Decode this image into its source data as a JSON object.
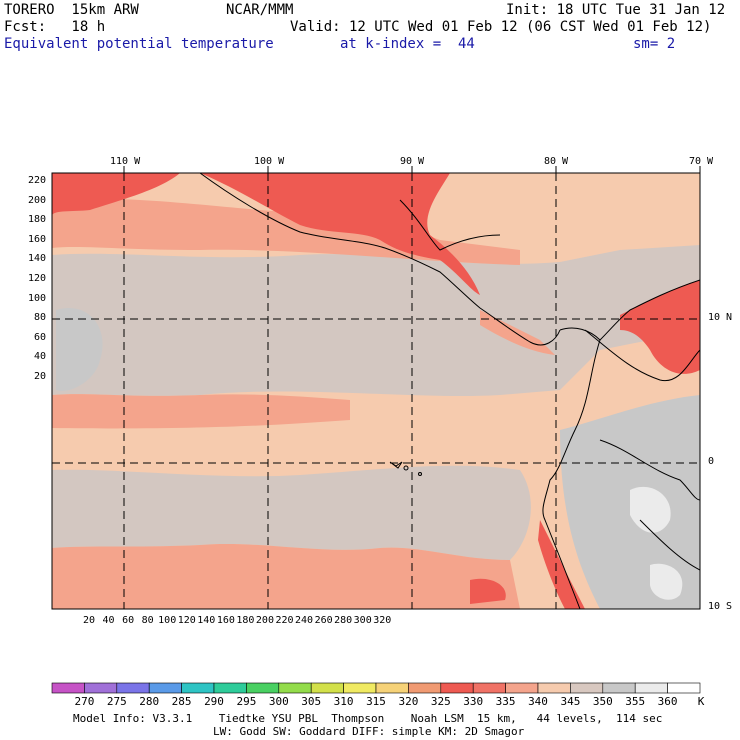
{
  "header": {
    "model": "TORERO  15km ARW",
    "org": "NCAR/MMM",
    "init": "Init: 18 UTC Tue 31 Jan 12",
    "fcst": "Fcst:   18 h",
    "valid": "Valid: 12 UTC Wed 01 Feb 12 (06 CST Wed 01 Feb 12)",
    "field": "Equivalent potential temperature",
    "level": "at k-index =  44",
    "smooth": "sm= 2"
  },
  "axes": {
    "top_lon": [
      "110 W",
      "100 W",
      "90 W",
      "80 W",
      "70 W"
    ],
    "right_lat": [
      "10 N",
      "0",
      "10 S"
    ],
    "left_ticks": [
      "220",
      "200",
      "180",
      "160",
      "140",
      "120",
      "100",
      "80",
      "60",
      "40",
      "20"
    ],
    "bottom_ticks": [
      "20",
      "40",
      "60",
      "80",
      "100",
      "120",
      "140",
      "160",
      "180",
      "200",
      "220",
      "240",
      "260",
      "280",
      "300",
      "320"
    ]
  },
  "colorbar": {
    "labels": [
      "270",
      "275",
      "280",
      "285",
      "290",
      "295",
      "300",
      "305",
      "310",
      "315",
      "320",
      "325",
      "330",
      "335",
      "340",
      "345",
      "350",
      "355",
      "360"
    ],
    "unit": "K",
    "colors": [
      "#c653c6",
      "#a070d8",
      "#7a74e8",
      "#5a9ae8",
      "#2ec4c4",
      "#2ecc9a",
      "#49d062",
      "#93dc4b",
      "#d2e04a",
      "#f0ea62",
      "#f6d278",
      "#f09a72",
      "#ee5a52",
      "#f07266",
      "#f4a48c",
      "#f6cbae",
      "#d8c8c0",
      "#c8c8c8",
      "#ebebeb",
      "#ffffff"
    ]
  },
  "footer": {
    "line1": "Model Info: V3.3.1    Tiedtke YSU PBL  Thompson    Noah LSM  15 km,   44 levels,  114 sec",
    "line2": "LW: Godd SW: Goddard DIFF: simple KM: 2D Smagor"
  },
  "map_colors": {
    "warm1": "#f4a48c",
    "warm2": "#f6cbae",
    "gray": "#d3c7c1",
    "gray2": "#c8c8c8",
    "hot": "#ee5a52",
    "white": "#ebebeb"
  }
}
